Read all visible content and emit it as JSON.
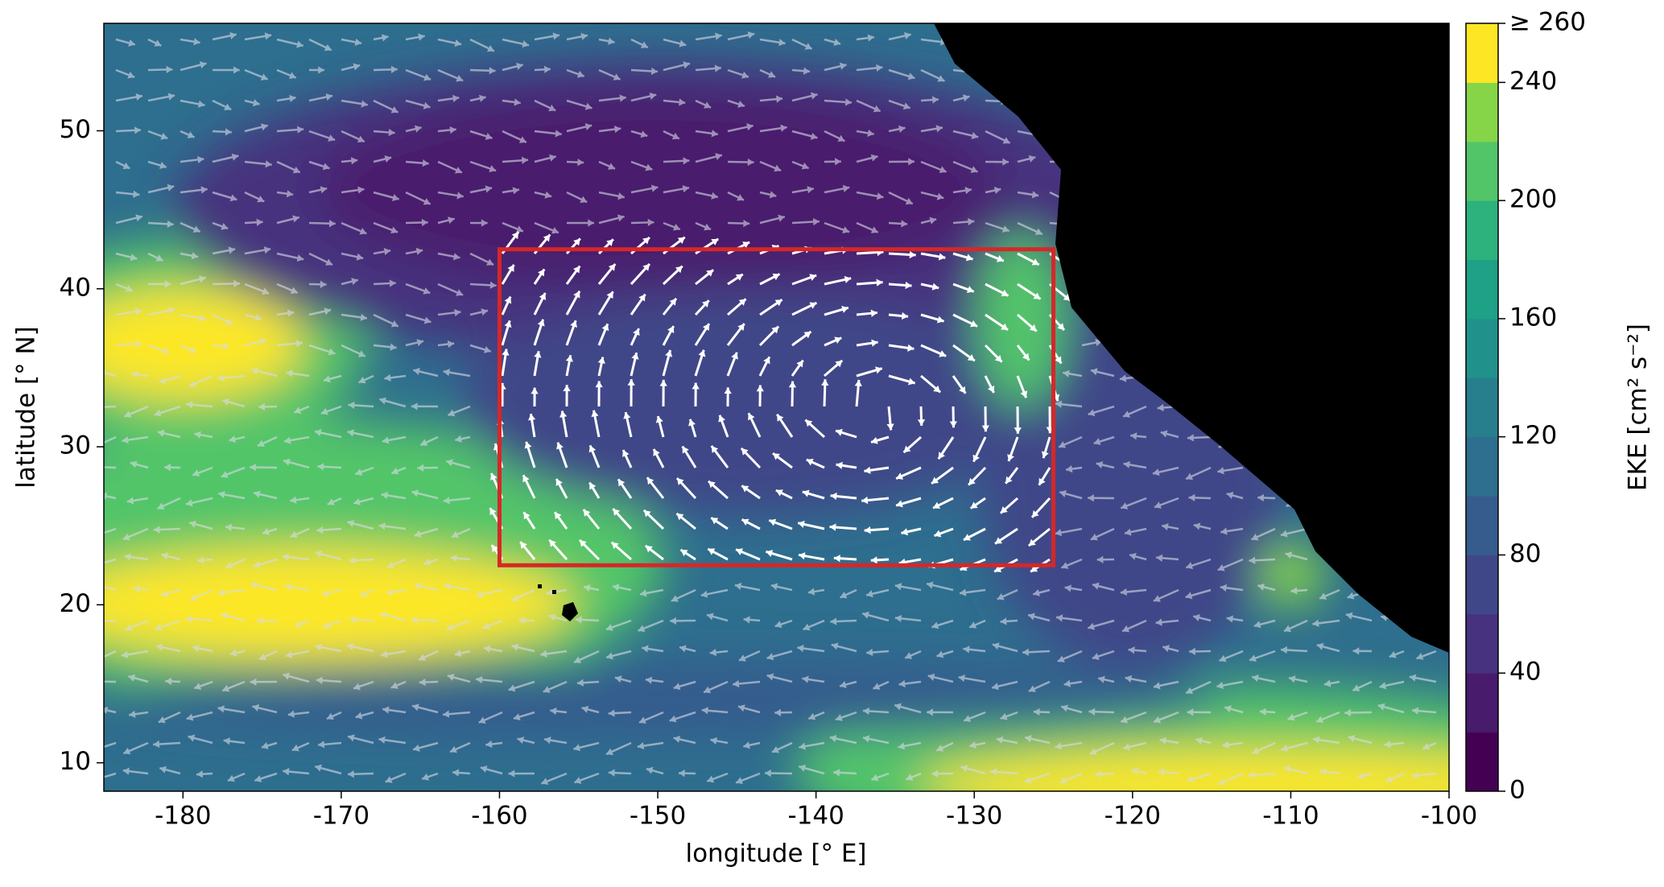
{
  "chart_data": {
    "type": "map",
    "xlabel": "longitude [° E]",
    "ylabel": "latitude [° N]",
    "xlim": [
      -185,
      -100
    ],
    "ylim": [
      8.2,
      56.8
    ],
    "xticks": [
      -180,
      -170,
      -160,
      -150,
      -140,
      -130,
      -120,
      -110,
      -100
    ],
    "yticks": [
      10,
      20,
      30,
      40,
      50
    ],
    "box": {
      "lon": [
        -160,
        -125
      ],
      "lat": [
        22.5,
        42.5
      ],
      "color": "#d62728"
    },
    "colorbar": {
      "label": "EKE [cm² s⁻²]",
      "lim": [
        0,
        260
      ],
      "ticks": [
        0,
        40,
        80,
        120,
        160,
        200,
        240,
        {
          "value": 260,
          "label": "≥ 260"
        }
      ],
      "levels": [
        0,
        20,
        40,
        60,
        80,
        100,
        120,
        140,
        160,
        180,
        200,
        220,
        240,
        260
      ],
      "colors": [
        "#440154",
        "#481b6d",
        "#46327e",
        "#3f4788",
        "#365c8d",
        "#2e6e8e",
        "#277f8e",
        "#21918c",
        "#1fa187",
        "#2db27d",
        "#52c569",
        "#86d549",
        "#fde725"
      ]
    }
  }
}
